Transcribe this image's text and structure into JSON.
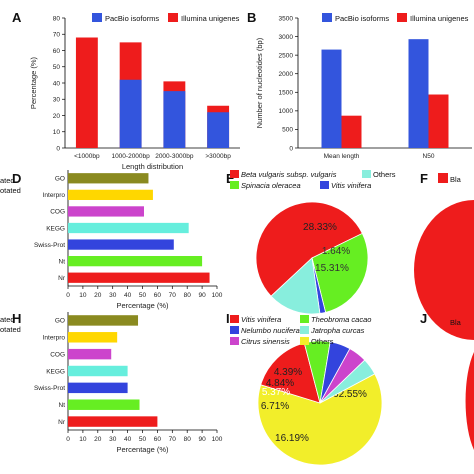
{
  "panel_letters": {
    "A": "A",
    "B": "B",
    "D": "D",
    "E": "E",
    "F": "F",
    "H": "H",
    "I": "I",
    "J": "J"
  },
  "left_cut": {
    "line1": "ated",
    "line2": "otated"
  },
  "right_cut": {
    "f": "Bla",
    "j": "Bla"
  },
  "colors": {
    "pacbio": "#3355dd",
    "illumina": "#ee1c1c",
    "GO": "#8a8a20",
    "Interpro": "#ffd700",
    "COG": "#cc44cc",
    "KEGG": "#66eedd",
    "Swiss-Prot": "#3344dd",
    "Nt": "#66ee22",
    "Nr": "#ee1c1c"
  },
  "chart_data": [
    {
      "id": "A",
      "type": "bar",
      "categories": [
        "<1000bp",
        "1000-2000bp",
        "2000-3000bp",
        ">3000bp"
      ],
      "series": [
        {
          "name": "PacBio isoforms",
          "values": [
            0,
            42,
            35,
            22
          ]
        },
        {
          "name": "Illumina unigenes",
          "values": [
            68,
            65,
            41,
            26
          ]
        }
      ],
      "stacked_overlay": true,
      "xlabel": "Length distribution",
      "ylabel": "Percentage (%)",
      "ylim": [
        0,
        80
      ],
      "yticks": [
        0,
        10,
        20,
        30,
        40,
        50,
        60,
        70,
        80
      ],
      "legend": "top"
    },
    {
      "id": "B",
      "type": "bar",
      "categories": [
        "Mean length",
        "N50"
      ],
      "series": [
        {
          "name": "PacBio isoforms",
          "values": [
            2650,
            2930
          ]
        },
        {
          "name": "Illumina unigenes",
          "values": [
            870,
            1440
          ]
        }
      ],
      "xlabel": "",
      "ylabel": "Number of nucleotides (bp)",
      "ylim": [
        0,
        3500
      ],
      "yticks": [
        0,
        500,
        1000,
        1500,
        2000,
        2500,
        3000,
        3500
      ],
      "legend": "top"
    },
    {
      "id": "D",
      "type": "bar",
      "orientation": "horizontal",
      "categories": [
        "GO",
        "Interpro",
        "COG",
        "KEGG",
        "Swiss-Prot",
        "Nt",
        "Nr"
      ],
      "values": [
        54,
        57,
        51,
        81,
        71,
        90,
        95
      ],
      "xlabel": "Percentage (%)",
      "xlim": [
        0,
        100
      ],
      "xticks": [
        0,
        10,
        20,
        30,
        40,
        50,
        60,
        70,
        80,
        90,
        100
      ]
    },
    {
      "id": "E",
      "type": "pie",
      "slices": [
        {
          "name": "Beta vulgaris subsp. vulgaris",
          "value": 54.72,
          "label": "54.72%",
          "color": "#ee1c1c"
        },
        {
          "name": "Spinacia oleracea",
          "value": 28.33,
          "label": "28.33%",
          "color": "#66ee22"
        },
        {
          "name": "Vitis vinifera",
          "value": 1.64,
          "label": "1.64%",
          "color": "#3344dd"
        },
        {
          "name": "Others",
          "value": 15.31,
          "label": "15.31%",
          "color": "#88eedd"
        }
      ]
    },
    {
      "id": "H",
      "type": "bar",
      "orientation": "horizontal",
      "categories": [
        "GO",
        "Interpro",
        "COG",
        "KEGG",
        "Swiss-Prot",
        "Nt",
        "Nr"
      ],
      "values": [
        47,
        33,
        29,
        40,
        40,
        48,
        60
      ],
      "xlabel": "Percentage (%)",
      "xlim": [
        0,
        100
      ],
      "xticks": [
        0,
        10,
        20,
        30,
        40,
        50,
        60,
        70,
        80,
        90,
        100
      ]
    },
    {
      "id": "I",
      "type": "pie",
      "slices": [
        {
          "name": "Others",
          "value": 62.55,
          "label": "62.55%",
          "color": "#f2ee2a"
        },
        {
          "name": "Vitis vinifera",
          "value": 16.19,
          "label": "16.19%",
          "color": "#ee1c1c"
        },
        {
          "name": "Theobroma cacao",
          "value": 6.71,
          "label": "6.71%",
          "color": "#66ee22"
        },
        {
          "name": "Nelumbo nucifera",
          "value": 5.37,
          "label": "5.37%",
          "color": "#3344dd"
        },
        {
          "name": "Citrus sinensis",
          "value": 4.84,
          "label": "4.84%",
          "color": "#cc44cc"
        },
        {
          "name": "Jatropha curcas",
          "value": 4.39,
          "label": "4.39%",
          "color": "#88eedd"
        }
      ]
    }
  ]
}
